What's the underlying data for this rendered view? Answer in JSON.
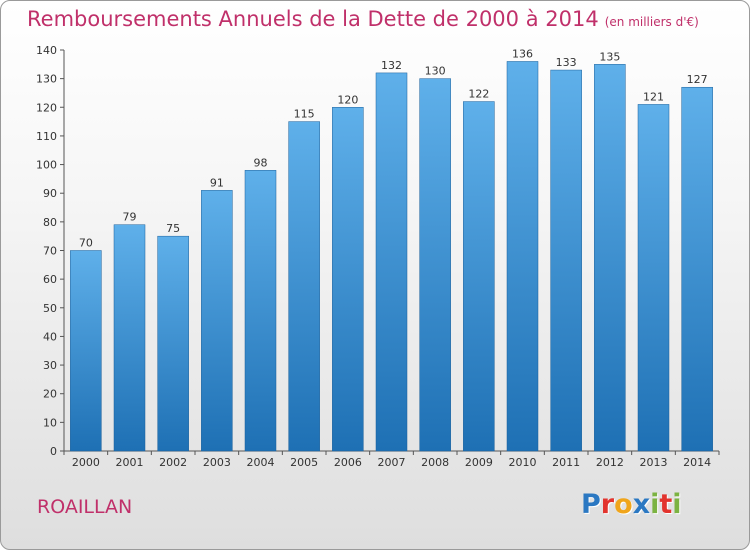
{
  "title": "Remboursements Annuels de la Dette de 2000 à 2014",
  "subtitle": "(en milliers d'€)",
  "town": "ROAILLAN",
  "logo": {
    "text": "Proxiti",
    "letters": [
      {
        "ch": "P",
        "color": "#2b78c2"
      },
      {
        "ch": "r",
        "color": "#e2342e"
      },
      {
        "ch": "o",
        "color": "#f0a51b"
      },
      {
        "ch": "x",
        "color": "#2b78c2"
      },
      {
        "ch": "i",
        "color": "#7cb342"
      },
      {
        "ch": "t",
        "color": "#e2342e"
      },
      {
        "ch": "i",
        "color": "#7cb342"
      }
    ]
  },
  "colors": {
    "accent": "#c0306a",
    "bar_top": "#5fb0ea",
    "bar_bottom": "#1e70b4"
  },
  "chart_data": {
    "type": "bar",
    "title": "Remboursements Annuels de la Dette de 2000 à 2014",
    "xlabel": "",
    "ylabel": "",
    "categories": [
      "2000",
      "2001",
      "2002",
      "2003",
      "2004",
      "2005",
      "2006",
      "2007",
      "2008",
      "2009",
      "2010",
      "2011",
      "2012",
      "2013",
      "2014"
    ],
    "values": [
      70,
      79,
      75,
      91,
      98,
      115,
      120,
      132,
      130,
      122,
      136,
      133,
      135,
      121,
      127
    ],
    "ylim": [
      0,
      140
    ],
    "yticks": [
      0,
      10,
      20,
      30,
      40,
      50,
      60,
      70,
      80,
      90,
      100,
      110,
      120,
      130,
      140
    ],
    "grid": false
  }
}
